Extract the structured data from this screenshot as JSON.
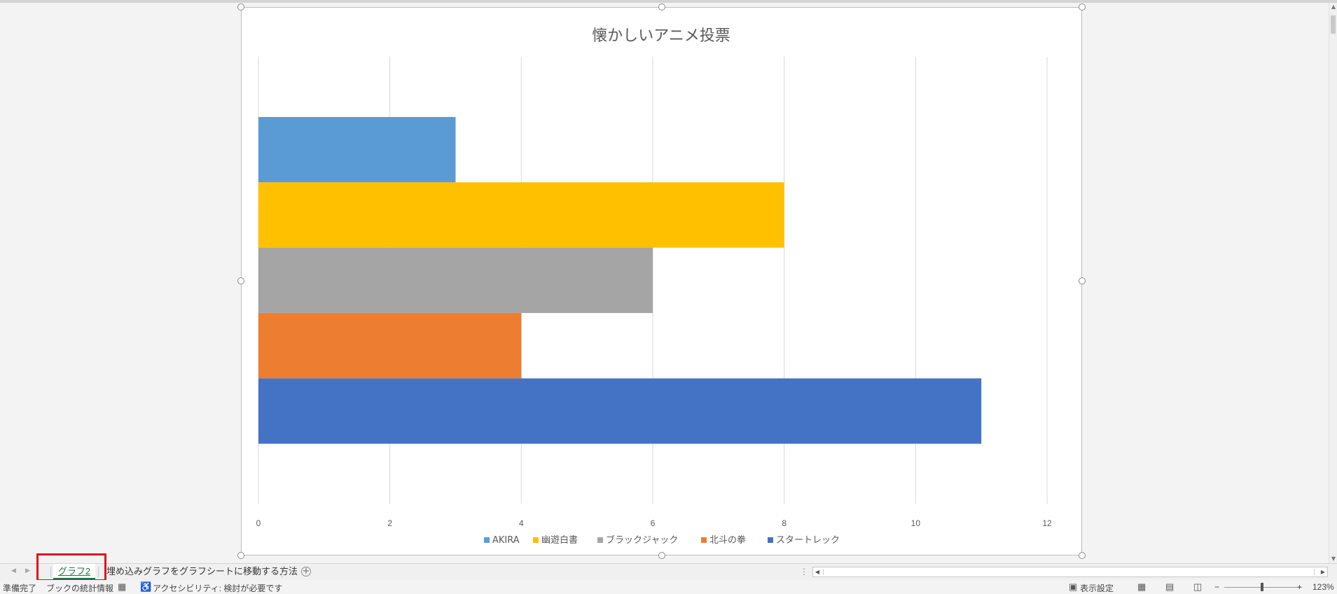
{
  "chart_data": {
    "type": "bar",
    "orientation": "horizontal",
    "title": "懐かしいアニメ投票",
    "xlim": [
      0,
      12
    ],
    "x_ticks": [
      "0",
      "2",
      "4",
      "6",
      "8",
      "10",
      "12"
    ],
    "grid": true,
    "legend_position": "bottom",
    "series": [
      {
        "name": "AKIRA",
        "value": 3,
        "color": "#5B9BD5"
      },
      {
        "name": "幽遊白書",
        "value": 8,
        "color": "#FFC000"
      },
      {
        "name": "ブラックジャック",
        "value": 6,
        "color": "#A5A5A5"
      },
      {
        "name": "北斗の拳",
        "value": 4,
        "color": "#ED7D31"
      },
      {
        "name": "スタートレック",
        "value": 11,
        "color": "#4472C4"
      }
    ]
  },
  "sheet_tabs": {
    "active": "グラフ2",
    "other": "埋め込みグラフをグラフシートに移動する方法",
    "add_icon": "plus-circle-icon"
  },
  "status_bar": {
    "ready": "準備完了",
    "stats": "ブックの統計情報",
    "accessibility": "アクセシビリティ: 検討が必要です",
    "display_settings": "表示設定",
    "zoom_minus": "−",
    "zoom_plus": "+",
    "zoom": "123%"
  },
  "colors": {
    "accent": "#217346",
    "highlight": "#E0141E"
  }
}
